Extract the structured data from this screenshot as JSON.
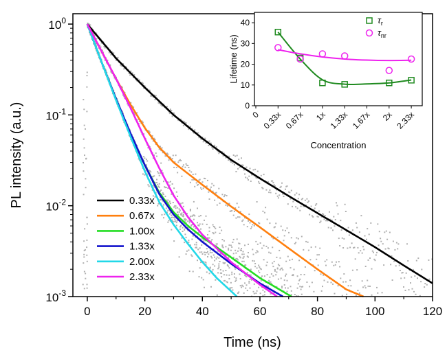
{
  "chart_data": [
    {
      "type": "line",
      "xlabel": "Time (ns)",
      "ylabel": "PL intensity (a.u.)",
      "xlim": [
        -5,
        120
      ],
      "ylim": [
        0.001,
        1.3
      ],
      "y_scale": "log",
      "x_ticks": [
        "0",
        "20",
        "40",
        "60",
        "80",
        "100",
        "120"
      ],
      "y_ticks": [
        {
          "base": "10",
          "exp": "0"
        },
        {
          "base": "10",
          "exp": "-1"
        },
        {
          "base": "10",
          "exp": "-2"
        },
        {
          "base": "10",
          "exp": "-3"
        }
      ],
      "legend_position": "bottom-left",
      "raw_data_color": "#b0b0b0",
      "series": [
        {
          "name": "0.33x",
          "color": "#000000",
          "x": [
            0,
            10,
            20,
            30,
            40,
            50,
            60,
            70,
            80,
            90,
            100,
            110,
            120
          ],
          "y": [
            1.0,
            0.42,
            0.2,
            0.1,
            0.055,
            0.032,
            0.02,
            0.0128,
            0.0083,
            0.0054,
            0.0035,
            0.0022,
            0.0014
          ]
        },
        {
          "name": "0.67x",
          "color": "#ff7f0e",
          "x": [
            0,
            5,
            10,
            15,
            20,
            25,
            30,
            40,
            50,
            60,
            70,
            80,
            90,
            96
          ],
          "y": [
            1.0,
            0.5,
            0.25,
            0.13,
            0.072,
            0.044,
            0.03,
            0.017,
            0.0098,
            0.0058,
            0.0034,
            0.002,
            0.0012,
            0.001
          ]
        },
        {
          "name": "1.00x",
          "color": "#22dd22",
          "x": [
            0,
            5,
            10,
            15,
            20,
            25,
            30,
            35,
            40,
            50,
            60,
            71
          ],
          "y": [
            1.0,
            0.38,
            0.15,
            0.062,
            0.028,
            0.014,
            0.0085,
            0.006,
            0.0045,
            0.0027,
            0.0016,
            0.001
          ]
        },
        {
          "name": "1.33x",
          "color": "#1111cc",
          "x": [
            0,
            5,
            10,
            15,
            20,
            25,
            30,
            35,
            40,
            50,
            60,
            68
          ],
          "y": [
            1.0,
            0.38,
            0.15,
            0.063,
            0.028,
            0.0135,
            0.008,
            0.0055,
            0.004,
            0.0023,
            0.0014,
            0.001
          ]
        },
        {
          "name": "2.00x",
          "color": "#22d8e8",
          "x": [
            0,
            5,
            10,
            15,
            20,
            25,
            30,
            35,
            40,
            45,
            52
          ],
          "y": [
            1.0,
            0.38,
            0.145,
            0.058,
            0.024,
            0.011,
            0.0062,
            0.0038,
            0.0024,
            0.0016,
            0.001
          ]
        },
        {
          "name": "2.33x",
          "color": "#ee22ee",
          "x": [
            0,
            5,
            10,
            15,
            20,
            25,
            30,
            35,
            40,
            50,
            60,
            66
          ],
          "y": [
            1.0,
            0.5,
            0.25,
            0.12,
            0.055,
            0.026,
            0.013,
            0.0075,
            0.0048,
            0.0024,
            0.00135,
            0.001
          ]
        }
      ]
    },
    {
      "type": "scatter",
      "xlabel": "Concentration",
      "ylabel": "Lifetime (ns)",
      "ylim": [
        0,
        45
      ],
      "y_ticks": [
        "0",
        "10",
        "20",
        "30",
        "40"
      ],
      "categories": [
        "0",
        "0.33x",
        "0.67x",
        "1x",
        "1.33x",
        "1.67x",
        "2x",
        "2.33x"
      ],
      "legend_position": "top-right",
      "series": [
        {
          "name_main": "τ",
          "name_sub": "r",
          "color": "#1f8a1f",
          "marker": "square",
          "x": [
            "0.33x",
            "0.67x",
            "1x",
            "1.33x",
            "2x",
            "2.33x"
          ],
          "values": [
            35.5,
            23,
            11,
            10.3,
            11,
            12.3
          ],
          "fit": [
            35.5,
            22.5,
            12.5,
            10.4,
            10.5,
            11,
            12.4
          ]
        },
        {
          "name_main": "τ",
          "name_sub": "nr",
          "color": "#ee22ee",
          "marker": "circle",
          "x": [
            "0.33x",
            "0.67x",
            "1x",
            "1.33x",
            "2x",
            "2.33x"
          ],
          "values": [
            28,
            22.5,
            25,
            24,
            17,
            22.5
          ],
          "fit": [
            27,
            25,
            23.5,
            22.5,
            22,
            21.8,
            21.9
          ]
        }
      ]
    }
  ]
}
